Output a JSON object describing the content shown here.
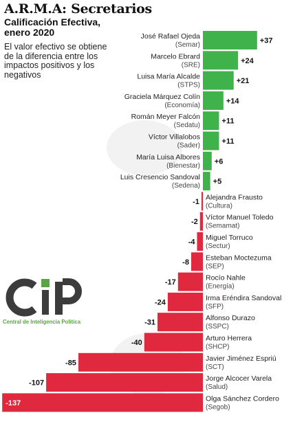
{
  "title": "A.R.M.A: Secretarios",
  "subtitle": "Calificación Efectiva, enero 2020",
  "note": "El valor efectivo se obtiene de la diferencia entre los impactos positivos y los negativos",
  "logo": {
    "text": "CIP",
    "tagline": "Central de Inteligencia Política"
  },
  "colors": {
    "positive": "#3fb24b",
    "negative": "#e0283e",
    "logo_dark": "#3c3c3c",
    "logo_green": "#5aa445"
  },
  "chart_data": {
    "type": "bar",
    "orientation": "horizontal",
    "title": "A.R.M.A: Secretarios",
    "subtitle": "Calificación Efectiva, enero 2020",
    "xlabel": "",
    "ylabel": "",
    "grid": false,
    "categories": [
      "José Rafael Ojeda",
      "Marcelo Ebrard",
      "Luisa María Alcalde",
      "Graciela Márquez Colín",
      "Román Meyer Falcón",
      "Víctor Villalobos",
      "María Luisa Albores",
      "Luis Cresencio Sandoval",
      "Alejandra Frausto",
      "Víctor Manuel Toledo",
      "Miguel Torruco",
      "Esteban Moctezuma",
      "Rocío Nahle",
      "Irma Eréndira Sandoval",
      "Alfonso Durazo",
      "Arturo Herrera",
      "Javier Jiménez Espriú",
      "Jorge Alcocer Varela",
      "Olga Sánchez Cordero"
    ],
    "departments": [
      "(Semar)",
      "(SRE)",
      "(STPS)",
      "(Economía)",
      "(Sedatu)",
      "(Sader)",
      "(Bienestar)",
      "(Sedena)",
      "(Cultura)",
      "(Semamat)",
      "(Sectur)",
      "(SEP)",
      "(Energía)",
      "(SFP)",
      "(SSPC)",
      "(SHCP)",
      "(SCT)",
      "(Salud)",
      "(Segob)"
    ],
    "values": [
      37,
      24,
      21,
      14,
      11,
      11,
      6,
      5,
      -1,
      -2,
      -4,
      -8,
      -17,
      -24,
      -31,
      -40,
      -85,
      -107,
      -137
    ],
    "labels": [
      "+37",
      "+24",
      "+21",
      "+14",
      "+11",
      "+11",
      "+6",
      "+5",
      "-1",
      "-2",
      "-4",
      "-8",
      "-17",
      "-24",
      "-31",
      "-40",
      "-85",
      "-107",
      "-137"
    ]
  }
}
